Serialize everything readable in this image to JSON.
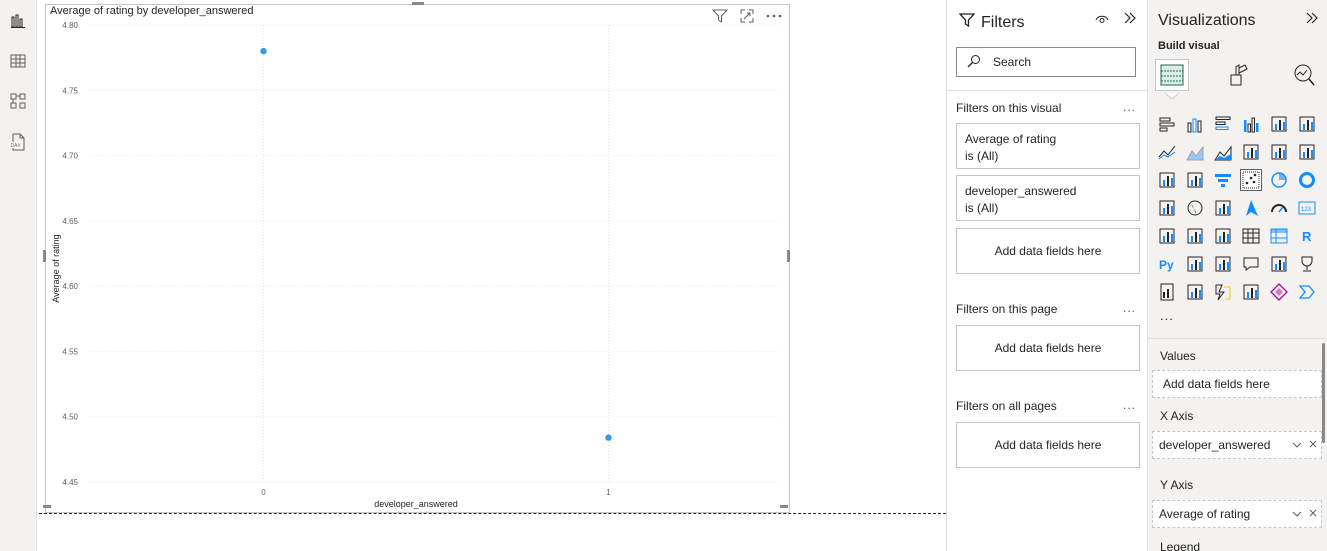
{
  "visual": {
    "title": "Average of rating by developer_answered",
    "tools": {
      "filter_icon": "filter-icon",
      "focus_icon": "focus-mode-icon",
      "more_icon": "more-options-icon"
    }
  },
  "chart_data": {
    "type": "scatter",
    "title": "Average of rating by developer_answered",
    "xlabel": "developer_answered",
    "ylabel": "Average of rating",
    "categories": [
      "0",
      "1"
    ],
    "x": [
      "0",
      "1"
    ],
    "values": [
      4.78,
      4.484
    ],
    "yticks": [
      "4.80",
      "4.75",
      "4.70",
      "4.65",
      "4.60",
      "4.55",
      "4.50",
      "4.45"
    ],
    "ylim": [
      4.45,
      4.8
    ],
    "grid": true,
    "point_color": "#3599e6"
  },
  "filters": {
    "title": "Filters",
    "search_placeholder": "Search",
    "on_visual_label": "Filters on this visual",
    "on_visual_cards": [
      {
        "line1": "Average of rating",
        "line2": "is (All)"
      },
      {
        "line1": "developer_answered",
        "line2": "is (All)"
      }
    ],
    "add_fields": "Add data fields here",
    "on_page_label": "Filters on this page",
    "on_all_label": "Filters on all pages",
    "more": "..."
  },
  "visualizations": {
    "title": "Visualizations",
    "build_label": "Build visual",
    "more": "...",
    "wells": {
      "values_label": "Values",
      "values_add": "Add data fields here",
      "x_label": "X Axis",
      "x_field": "developer_answered",
      "y_label": "Y Axis",
      "y_field": "Average of rating",
      "legend_label": "Legend"
    }
  },
  "colors": {
    "accent": "#3599e6",
    "brand_yellow": "#f2c811",
    "icon_blue": "#118dff"
  }
}
